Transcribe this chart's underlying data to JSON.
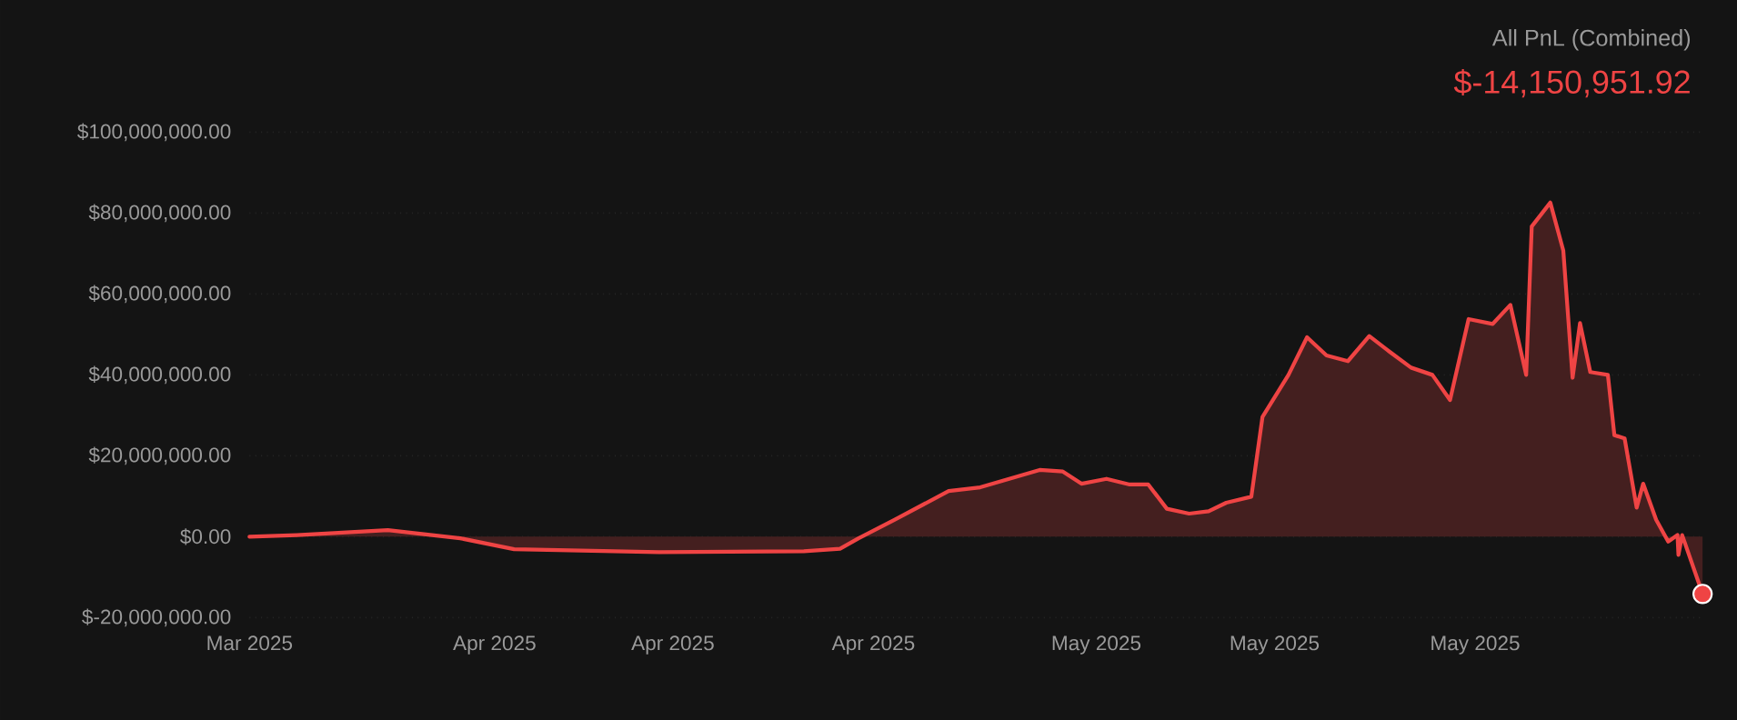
{
  "chart_data": {
    "type": "area",
    "title": "All PnL (Combined)",
    "subtitle": "$-14,150,951.92",
    "x": [
      "2025-03-28T00:00",
      "2025-03-30T03:00",
      "2025-04-03T05:00",
      "2025-04-06T11:00",
      "2025-04-08T21:00",
      "2025-04-15T09:00",
      "2025-04-21T21:00",
      "2025-04-23T12:00",
      "2025-04-24T08:00",
      "2025-04-25T23:00",
      "2025-04-28T09:00",
      "2025-04-29T19:00",
      "2025-05-02T11:00",
      "2025-05-03T12:00",
      "2025-05-04T08:00",
      "2025-05-05T11:00",
      "2025-05-06T12:00",
      "2025-05-07T08:00",
      "2025-05-08T04:00",
      "2025-05-09T04:00",
      "2025-05-10T01:00",
      "2025-05-10T20:00",
      "2025-05-11T23:00",
      "2025-05-12T11:00",
      "2025-05-13T15:00",
      "2025-05-14T11:00",
      "2025-05-15T08:00",
      "2025-05-16T07:00",
      "2025-05-17T06:00",
      "2025-05-18T04:00",
      "2025-05-19T03:00",
      "2025-05-20T02:00",
      "2025-05-20T21:00",
      "2025-05-21T17:00",
      "2025-05-22T19:00",
      "2025-05-23T14:00",
      "2025-05-24T07:00",
      "2025-05-24T13:00",
      "2025-05-25T09:00",
      "2025-05-25T23:00",
      "2025-05-26T09:00",
      "2025-05-26T17:00",
      "2025-05-27T04:00",
      "2025-05-27T23:00",
      "2025-05-28T06:00",
      "2025-05-28T17:00",
      "2025-05-29T06:00",
      "2025-05-29T13:00",
      "2025-05-30T03:00",
      "2025-05-30T16:00",
      "2025-05-31T02:00",
      "2025-05-31T03:00",
      "2025-05-31T07:00",
      "2025-06-01T05:00"
    ],
    "series": [
      {
        "color": "#ef4444",
        "values": [
          0,
          400000,
          1600000,
          -400000,
          -3100000,
          -3800000,
          -3600000,
          -3000000,
          -400000,
          4200000,
          11300000,
          12200000,
          16500000,
          16100000,
          13100000,
          14300000,
          12900000,
          12900000,
          6900000,
          5700000,
          6300000,
          8400000,
          9900000,
          29600000,
          40000000,
          49300000,
          44800000,
          43400000,
          49600000,
          45700000,
          41800000,
          40000000,
          33800000,
          53800000,
          52600000,
          57300000,
          40000000,
          76700000,
          82600000,
          70700000,
          39300000,
          52800000,
          40700000,
          40000000,
          25100000,
          24300000,
          7200000,
          13100000,
          4200000,
          -1200000,
          400000,
          -4500000,
          400000,
          -14150951.92
        ]
      },
      {
        "type": "scatter",
        "color": "#ef4444",
        "x": [
          "2025-06-01T05:00"
        ],
        "values": [
          -14150951.92
        ]
      }
    ],
    "xlim": [
      "2025-03-28T00:00",
      "2025-06-01T05:00"
    ],
    "ylim": [
      -20000000,
      100000000
    ],
    "xticks": [
      {
        "value": "2025-03-28",
        "label": "Mar 2025"
      },
      {
        "value": "2025-04-08",
        "label": "Apr 2025"
      },
      {
        "value": "2025-04-16",
        "label": "Apr 2025"
      },
      {
        "value": "2025-04-25",
        "label": "Apr 2025"
      },
      {
        "value": "2025-05-05",
        "label": "May 2025"
      },
      {
        "value": "2025-05-13",
        "label": "May 2025"
      },
      {
        "value": "2025-05-22",
        "label": "May 2025"
      }
    ],
    "yticks": [
      {
        "value": -20000000,
        "label": "$-20,000,000.00"
      },
      {
        "value": 0,
        "label": "$0.00"
      },
      {
        "value": 20000000,
        "label": "$20,000,000.00"
      },
      {
        "value": 40000000,
        "label": "$40,000,000.00"
      },
      {
        "value": 60000000,
        "label": "$60,000,000.00"
      },
      {
        "value": 80000000,
        "label": "$80,000,000.00"
      },
      {
        "value": 100000000,
        "label": "$100,000,000.00"
      }
    ],
    "grid": "y"
  }
}
